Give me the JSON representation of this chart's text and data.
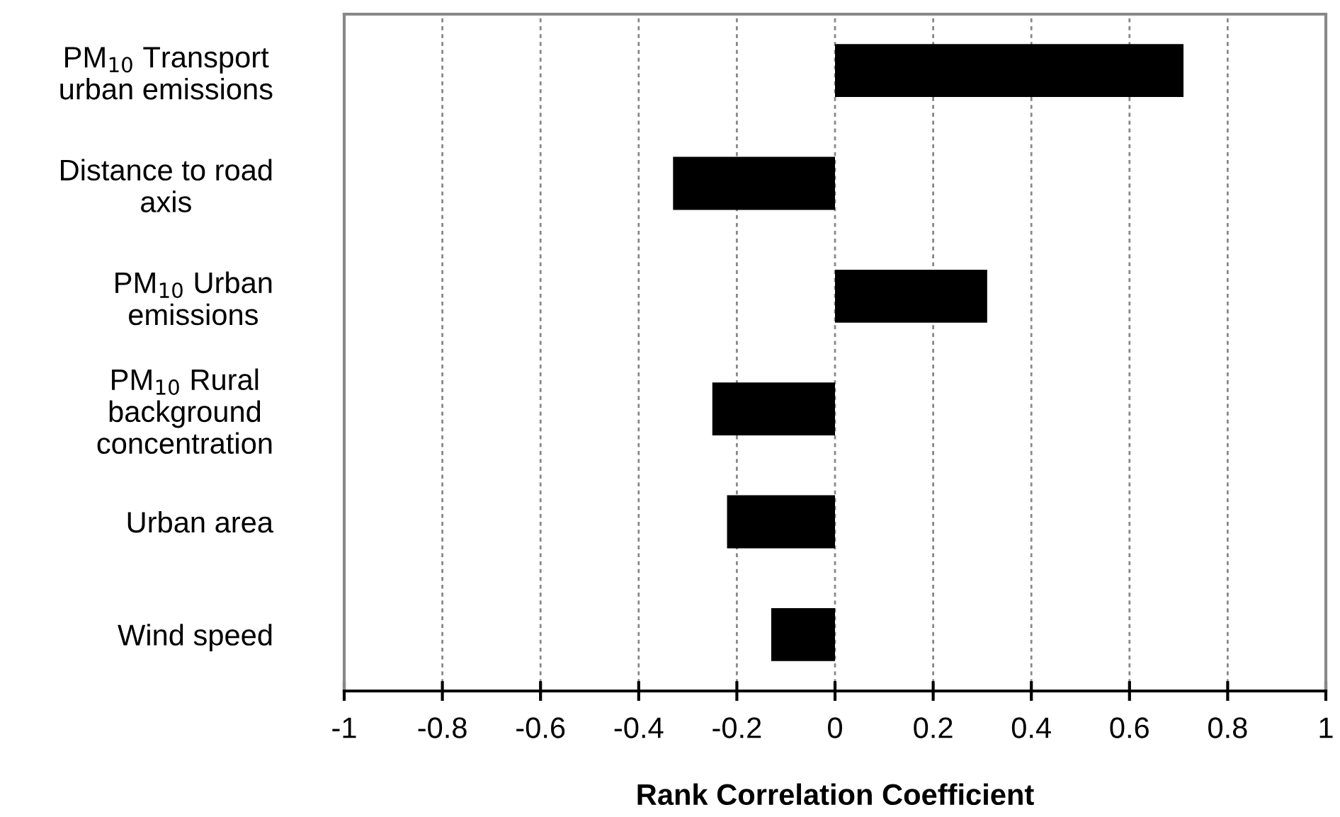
{
  "chart_data": {
    "type": "bar",
    "orientation": "horizontal",
    "xlabel": "Rank Correlation Coefficient",
    "categories": [
      "PM$_{10}$ Transport\nurban emissions",
      "Distance to road\naxis",
      "PM$_{10}$ Urban\nemissions",
      "PM$_{10}$ Rural\nbackground\nconcentration",
      "Urban area",
      "Wind speed"
    ],
    "values": [
      0.71,
      -0.33,
      0.31,
      -0.25,
      -0.22,
      -0.13
    ],
    "color": "#000000",
    "xlim": [
      -1,
      1
    ],
    "xticks": [
      -1,
      -0.8,
      -0.6,
      -0.4,
      -0.2,
      0,
      0.2,
      0.4,
      0.6,
      0.8,
      1
    ],
    "grid": "x"
  }
}
